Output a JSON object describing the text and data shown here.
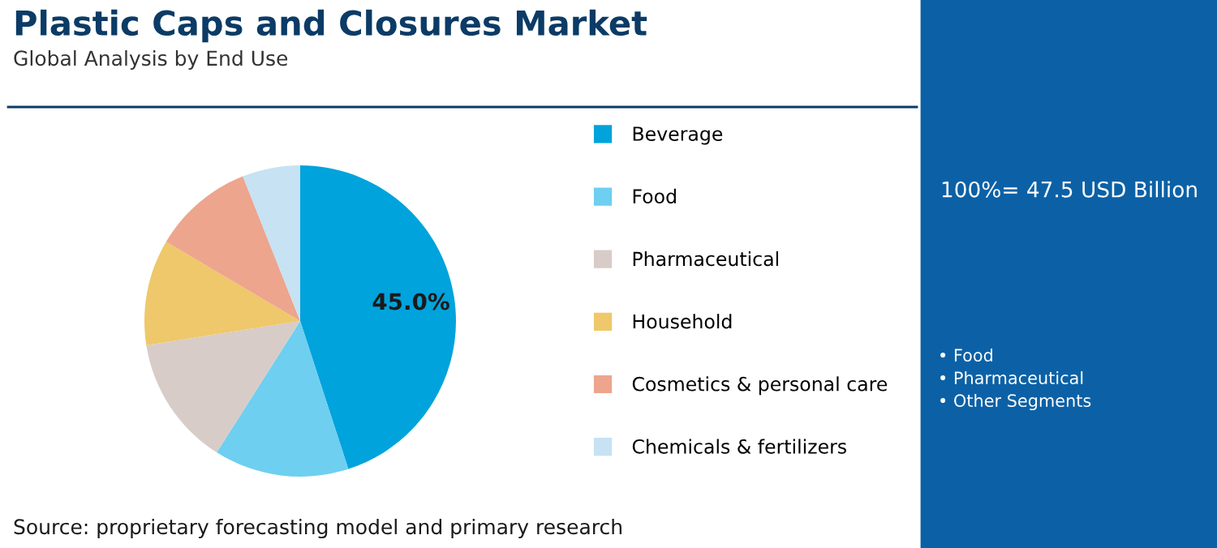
{
  "chart_data": {
    "type": "pie",
    "title": "Plastic Caps and Closures Market",
    "subtitle": "Global Analysis by End Use",
    "categories": [
      "Beverage",
      "Food",
      "Pharmaceutical",
      "Household",
      "Cosmetics & personal care",
      "Chemicals & fertilizers"
    ],
    "values": [
      45.0,
      14,
      13.5,
      11,
      10.5,
      6
    ],
    "colors": [
      "#00a3dc",
      "#6ecff0",
      "#d8ccc8",
      "#eec86a",
      "#eda58d",
      "#c6e2f3"
    ],
    "value_labels": [
      "45.0%",
      null,
      null,
      null,
      null,
      null
    ],
    "legend": "right",
    "annotations": [
      "Source: proprietary forecasting model and primary research",
      "100%= 47.5 USD Billion",
      "• Food",
      "• Pharmaceutical",
      "• Other Segments"
    ]
  }
}
